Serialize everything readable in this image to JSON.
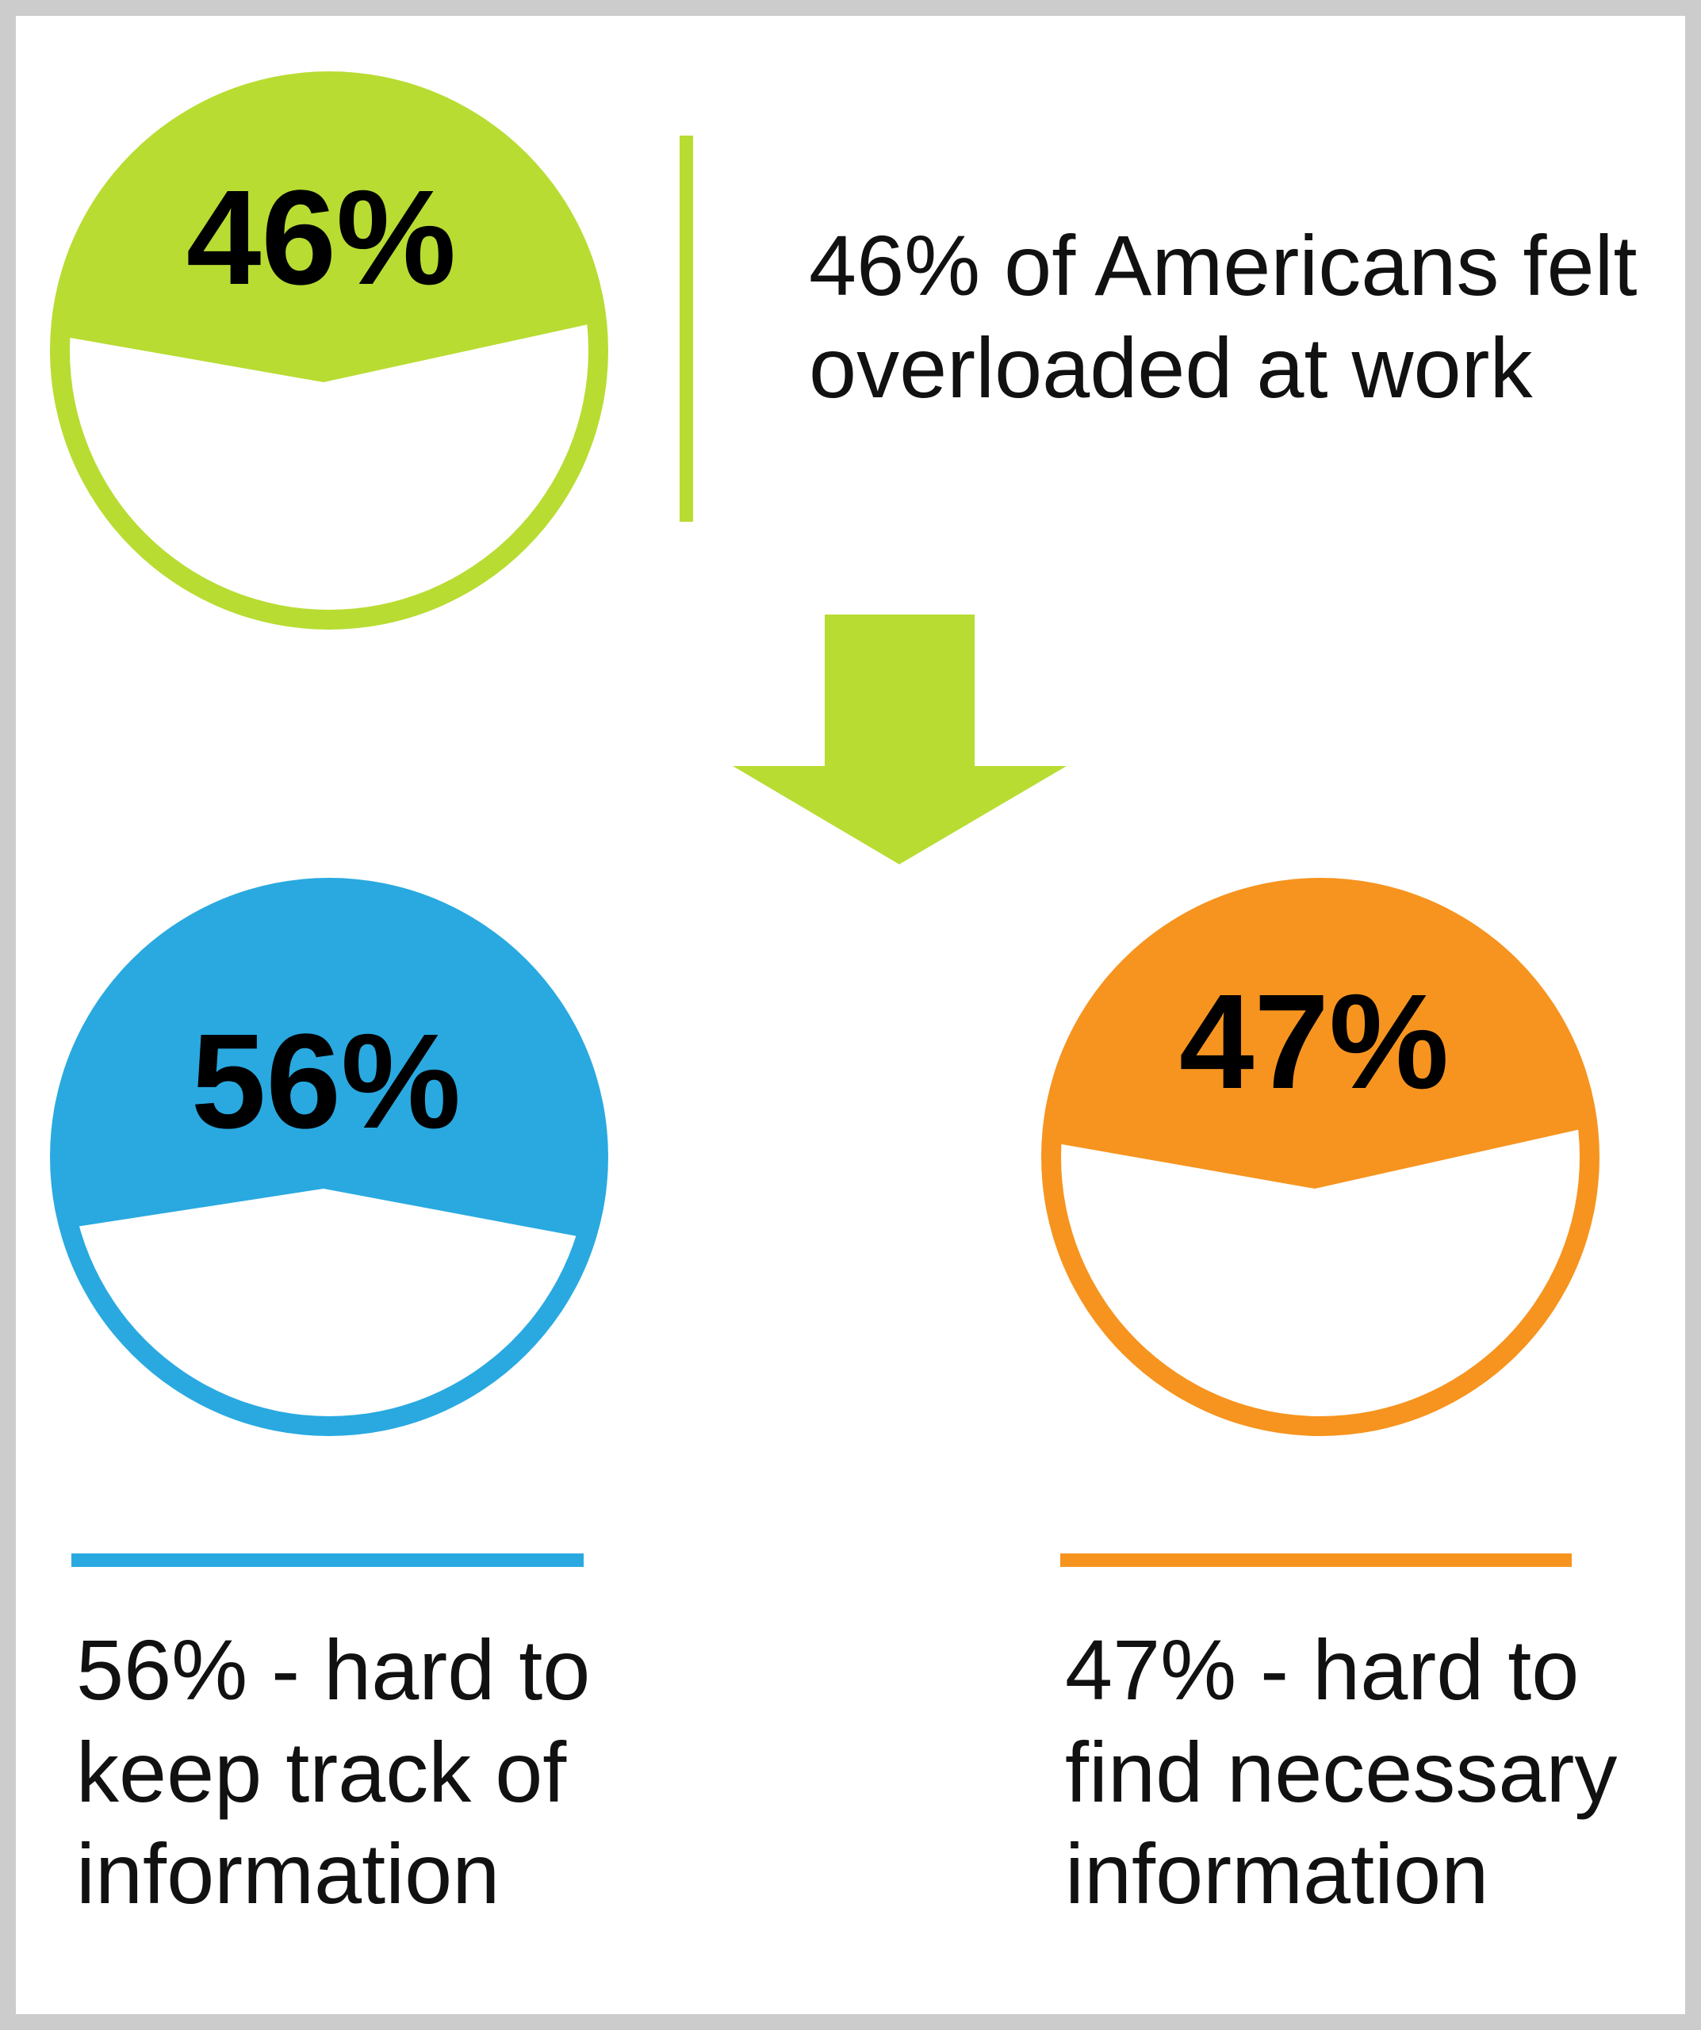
{
  "colors": {
    "green": "#b8dc32",
    "blue": "#29a9e0",
    "orange": "#f6941f",
    "border": "#cccccc"
  },
  "top": {
    "percent_label": "46%",
    "value": 46,
    "desc_lines": [
      "46% of Americans felt",
      "overloaded at work"
    ]
  },
  "left": {
    "percent_label": "56%",
    "value": 56,
    "desc_lines": [
      "56% - hard to",
      "keep track of",
      "information"
    ]
  },
  "right": {
    "percent_label": "47%",
    "value": 47,
    "desc_lines": [
      "47% - hard to",
      "find necessary",
      "information"
    ]
  }
}
